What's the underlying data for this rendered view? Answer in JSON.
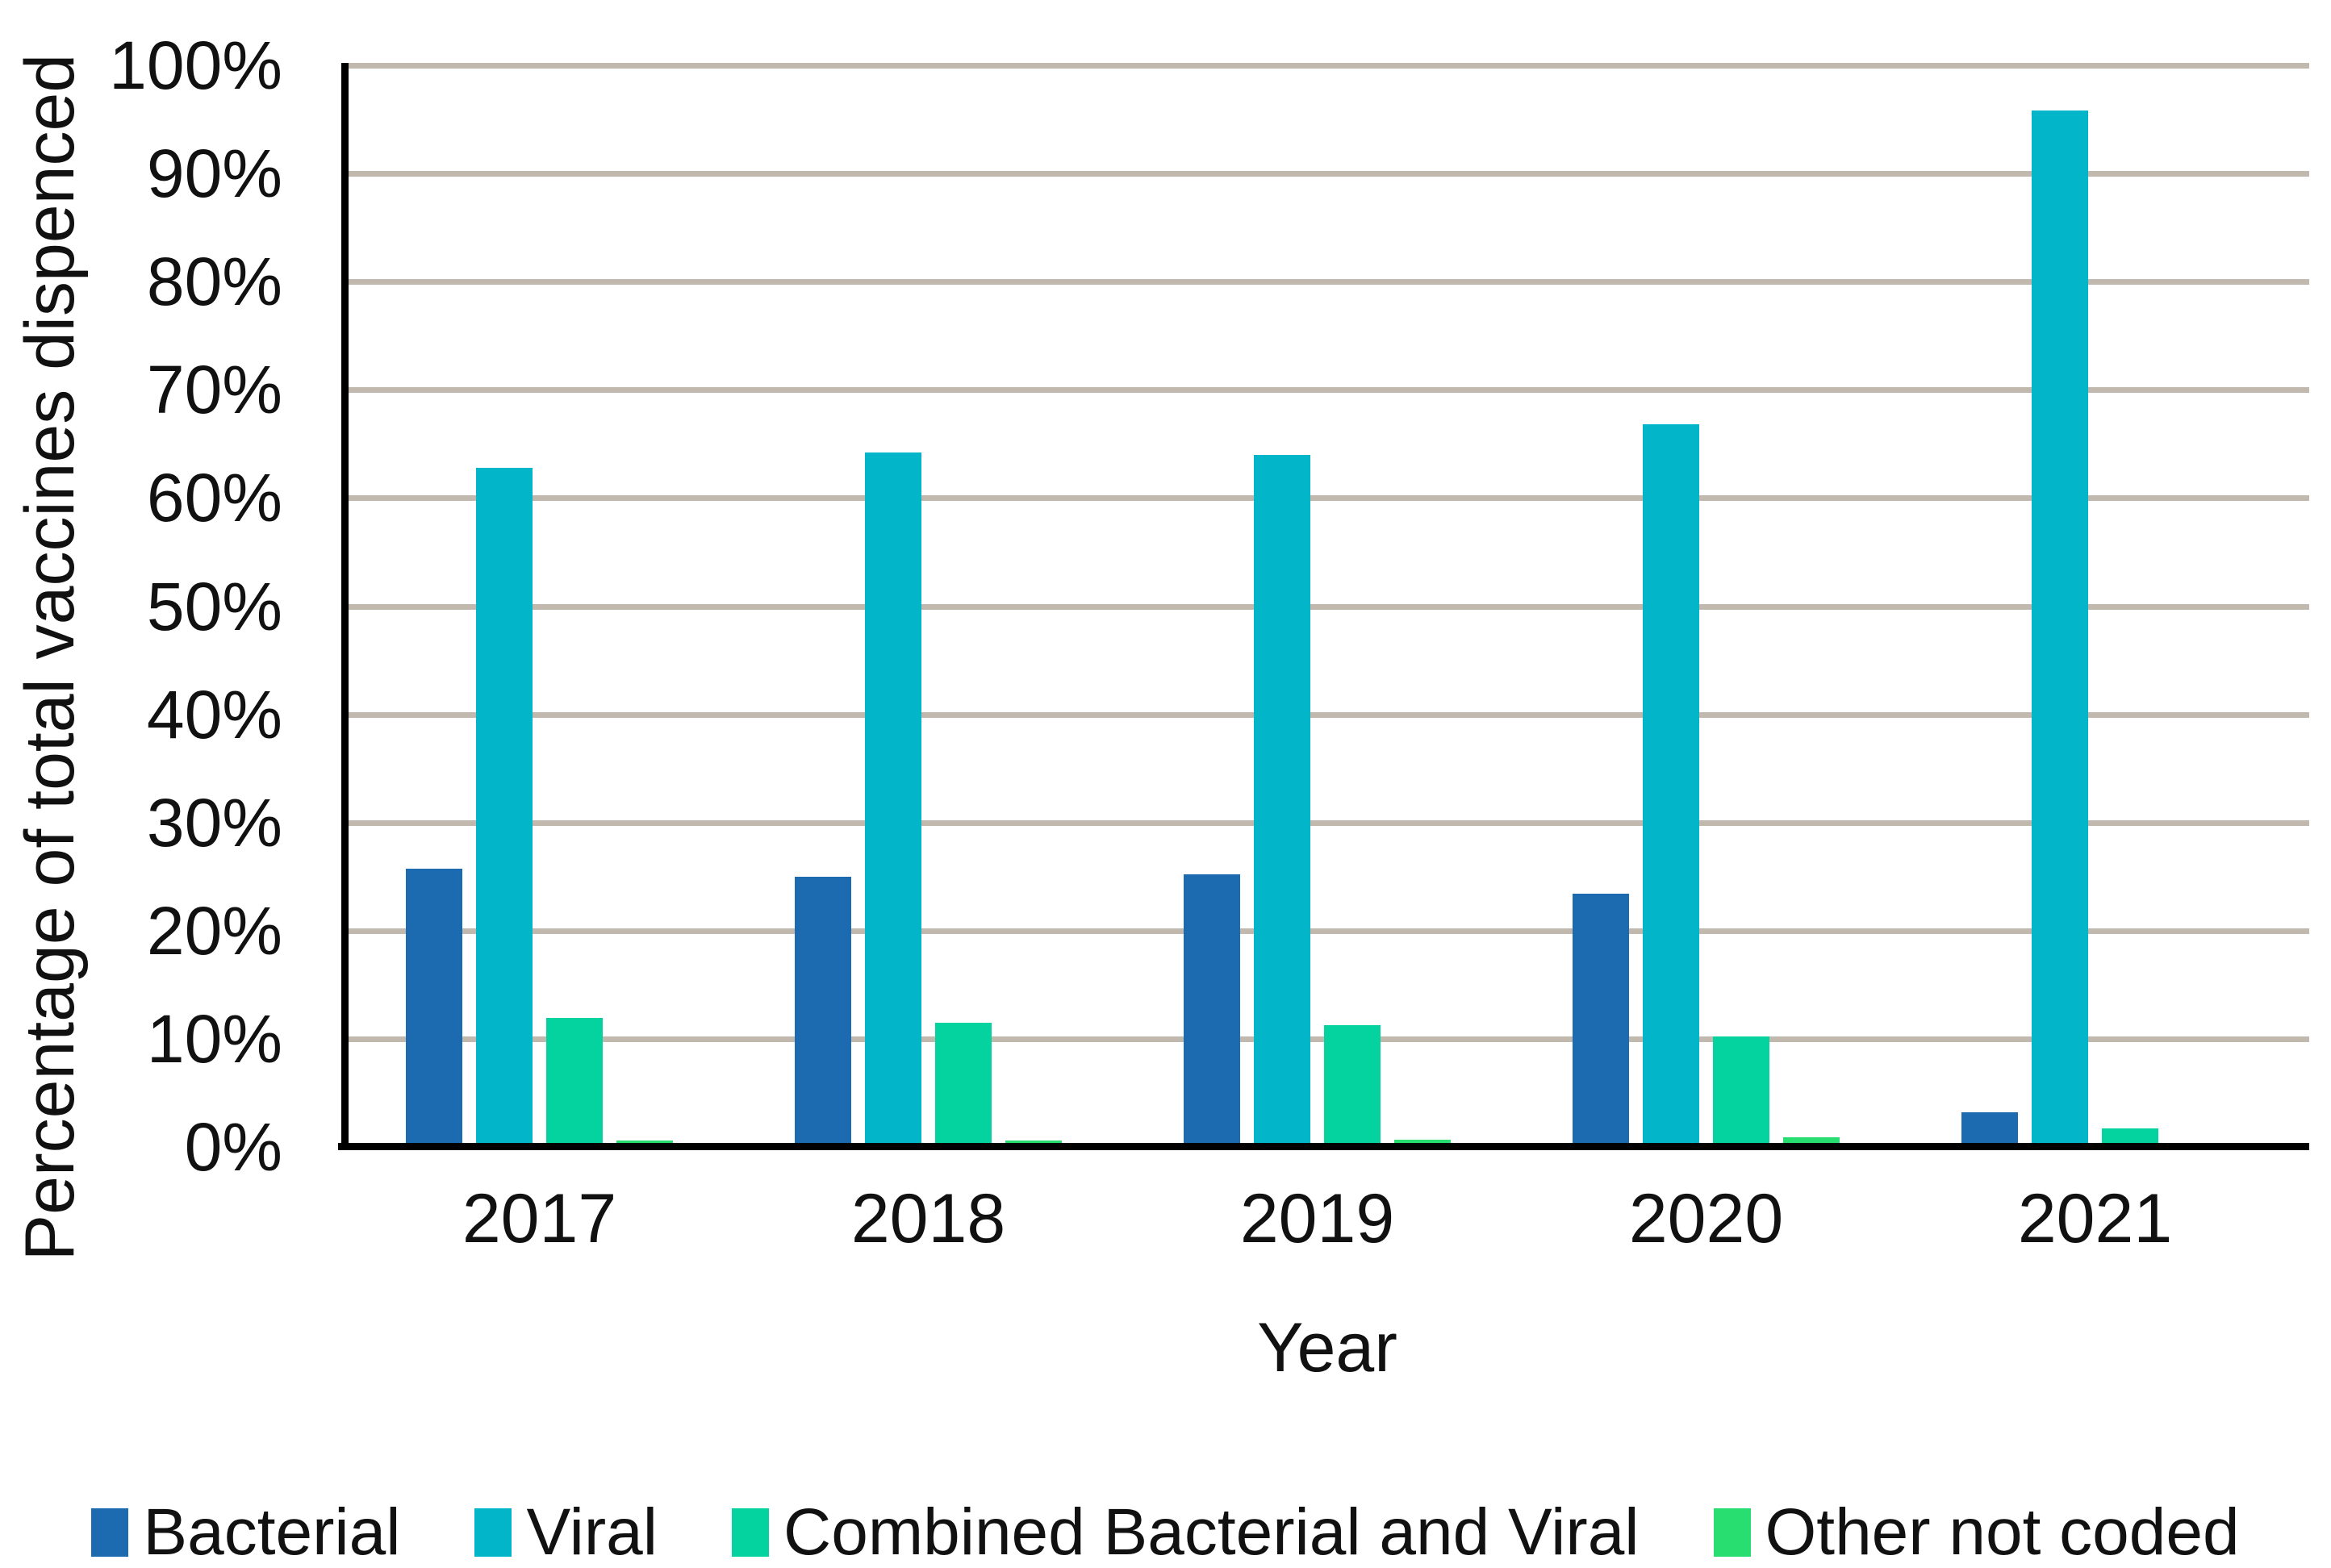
{
  "chart_data": {
    "type": "bar",
    "categories": [
      "2017",
      "2018",
      "2019",
      "2020",
      "2021"
    ],
    "series": [
      {
        "name": "Bacterial",
        "color": "#1c6bb0",
        "values": [
          25.4,
          24.7,
          24.9,
          23.1,
          2.9
        ]
      },
      {
        "name": "Viral",
        "color": "#02b5c8",
        "values": [
          62.5,
          63.9,
          63.7,
          66.5,
          95.5
        ]
      },
      {
        "name": "Combined Bacterial and Viral",
        "color": "#04d3a0",
        "values": [
          11.6,
          11.2,
          11.0,
          9.9,
          1.4
        ]
      },
      {
        "name": "Other not coded",
        "color": "#29de70",
        "values": [
          0.3,
          0.3,
          0.4,
          0.6,
          0.1
        ]
      }
    ],
    "title": "",
    "xlabel": "Year",
    "ylabel": "Percentage of total vaccines dispenced",
    "ylim": [
      0,
      100
    ],
    "yticks": [
      "0%",
      "10%",
      "20%",
      "30%",
      "40%",
      "50%",
      "60%",
      "70%",
      "80%",
      "90%",
      "100%"
    ],
    "grid": true,
    "gridline_color": "#c1b9ad",
    "axis_color": "#000000",
    "legend_position": "bottom"
  }
}
